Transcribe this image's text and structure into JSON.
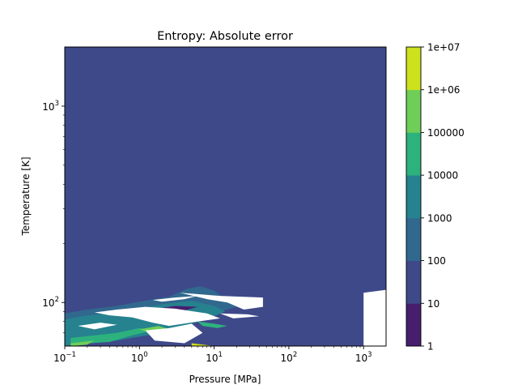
{
  "chart_data": {
    "type": "heatmap",
    "title": "Entropy: Absolute error",
    "xlabel": "Pressure [MPa]",
    "ylabel": "Temperature [K]",
    "xscale": "log",
    "yscale": "log",
    "xlim": [
      0.1,
      2000
    ],
    "ylim": [
      60,
      2000
    ],
    "x_ticks": [
      {
        "value": 0.1,
        "base": "10",
        "exp": "−1"
      },
      {
        "value": 1,
        "base": "10",
        "exp": "0"
      },
      {
        "value": 10,
        "base": "10",
        "exp": "1"
      },
      {
        "value": 100,
        "base": "10",
        "exp": "2"
      },
      {
        "value": 1000,
        "base": "10",
        "exp": "3"
      }
    ],
    "y_ticks": [
      {
        "value": 100,
        "base": "10",
        "exp": "2"
      },
      {
        "value": 1000,
        "base": "10",
        "exp": "3"
      }
    ],
    "background_level": "10-100",
    "colorbar": {
      "scale": "log",
      "placement": "right",
      "ticks": [
        "1",
        "10",
        "100",
        "1000",
        "10000",
        "100000",
        "1e+06",
        "1e+07"
      ],
      "levels": [
        {
          "range": "1-10",
          "color": "#471e6e"
        },
        {
          "range": "10-100",
          "color": "#3e4989"
        },
        {
          "range": "100-1000",
          "color": "#31688e"
        },
        {
          "range": "1000-10000",
          "color": "#26828e"
        },
        {
          "range": "10000-100000",
          "color": "#2db27d"
        },
        {
          "range": "100000-1000000",
          "color": "#6ece58"
        },
        {
          "range": "1000000-10000000",
          "color": "#cde11d"
        }
      ]
    },
    "regions": [
      {
        "level": "100-1000",
        "points": [
          [
            0.1,
            88
          ],
          [
            0.2,
            92
          ],
          [
            0.5,
            96
          ],
          [
            1,
            101
          ],
          [
            2.5,
            107
          ],
          [
            4.5,
            118
          ],
          [
            6.5,
            121
          ],
          [
            10,
            115
          ],
          [
            15,
            103
          ],
          [
            20,
            95
          ],
          [
            8,
            86
          ],
          [
            4,
            80
          ],
          [
            2,
            74
          ],
          [
            1,
            70
          ],
          [
            0.5,
            68
          ],
          [
            0.2,
            66
          ],
          [
            0.1,
            64
          ]
        ]
      },
      {
        "level": "1000-10000",
        "points": [
          [
            0.1,
            82
          ],
          [
            0.2,
            86
          ],
          [
            0.5,
            89
          ],
          [
            1,
            93
          ],
          [
            2,
            98
          ],
          [
            5,
            102
          ],
          [
            10,
            96
          ],
          [
            14,
            90
          ],
          [
            8,
            82
          ],
          [
            4,
            76
          ],
          [
            2,
            70
          ],
          [
            1,
            67
          ],
          [
            0.5,
            64
          ],
          [
            0.2,
            62
          ],
          [
            0.1,
            60
          ]
        ]
      },
      {
        "level": "10000-100000",
        "points": [
          [
            0.12,
            66
          ],
          [
            0.5,
            70
          ],
          [
            1,
            74
          ],
          [
            1.5,
            72
          ],
          [
            0.8,
            68
          ],
          [
            0.4,
            63
          ],
          [
            0.12,
            61
          ]
        ]
      },
      {
        "level": "10000-100000",
        "points": [
          [
            6,
            80
          ],
          [
            10,
            78
          ],
          [
            15,
            76
          ],
          [
            11,
            74
          ],
          [
            7,
            76
          ]
        ]
      },
      {
        "level": "100000-1000000",
        "points": [
          [
            1,
            73
          ],
          [
            1.8,
            76
          ],
          [
            2.5,
            73
          ],
          [
            1.4,
            70
          ]
        ]
      },
      {
        "level": "100000-1000000",
        "points": [
          [
            0.12,
            62
          ],
          [
            0.25,
            64
          ],
          [
            0.2,
            61
          ],
          [
            0.12,
            60
          ]
        ]
      },
      {
        "level": "1000000-10000000",
        "points": [
          [
            5,
            62
          ],
          [
            10,
            60
          ],
          [
            5,
            60
          ]
        ]
      },
      {
        "level": "1-10",
        "points": [
          [
            1.7,
            93
          ],
          [
            3,
            96
          ],
          [
            6,
            95
          ],
          [
            4,
            91
          ],
          [
            2,
            90
          ]
        ]
      },
      {
        "level": "no-data",
        "points": [
          [
            0.25,
            89
          ],
          [
            0.5,
            92
          ],
          [
            1.2,
            95
          ],
          [
            3,
            93
          ],
          [
            8,
            88
          ],
          [
            12,
            83
          ],
          [
            6,
            80
          ],
          [
            2.5,
            76
          ],
          [
            1.5,
            79
          ],
          [
            0.8,
            84
          ],
          [
            0.4,
            86
          ]
        ]
      },
      {
        "level": "no-data",
        "points": [
          [
            1.2,
            72
          ],
          [
            2.5,
            74
          ],
          [
            5,
            78
          ],
          [
            7,
            70
          ],
          [
            4,
            62
          ],
          [
            1.6,
            64
          ]
        ]
      },
      {
        "level": "no-data",
        "points": [
          [
            0.15,
            76
          ],
          [
            0.3,
            79
          ],
          [
            0.5,
            77
          ],
          [
            0.25,
            73
          ]
        ]
      },
      {
        "level": "no-data",
        "points": [
          [
            1.5,
            103
          ],
          [
            3,
            106
          ],
          [
            6,
            108
          ],
          [
            4,
            104
          ],
          [
            2,
            101
          ]
        ]
      },
      {
        "level": "no-data",
        "points": [
          [
            3.5,
            112
          ],
          [
            12,
            108
          ],
          [
            45,
            106
          ],
          [
            45,
            95
          ],
          [
            25,
            92
          ],
          [
            15,
            100
          ],
          [
            8,
            104
          ]
        ]
      },
      {
        "level": "no-data",
        "points": [
          [
            12,
            88
          ],
          [
            28,
            87
          ],
          [
            40,
            85
          ],
          [
            18,
            83
          ]
        ]
      },
      {
        "level": "no-data",
        "points": [
          [
            1000,
            112
          ],
          [
            2000,
            116
          ],
          [
            2000,
            60
          ],
          [
            1000,
            60
          ]
        ]
      }
    ]
  }
}
